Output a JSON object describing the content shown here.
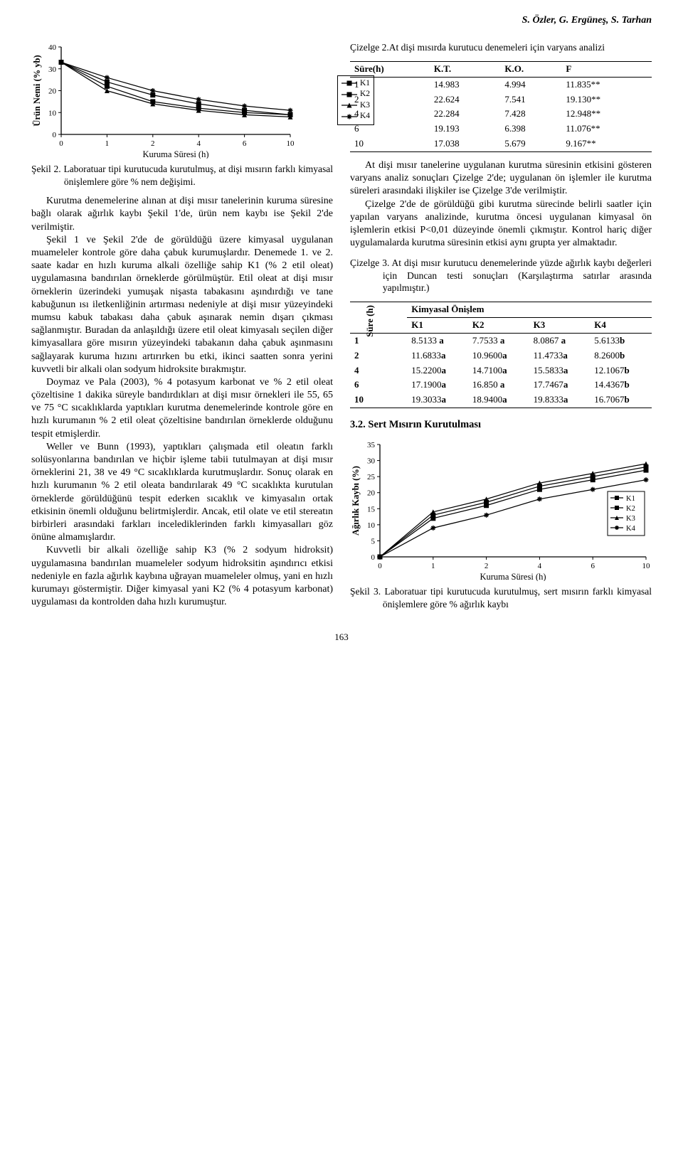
{
  "running_head": "S. Özler, G. Ergüneş, S. Tarhan",
  "page_number": "163",
  "fig2": {
    "type": "line",
    "x_categories": [
      "0",
      "1",
      "2",
      "4",
      "6",
      "10"
    ],
    "series": [
      {
        "name": "K1",
        "marker": "square",
        "color": "#000000",
        "values": [
          33,
          22,
          15,
          12,
          10,
          9
        ]
      },
      {
        "name": "K2",
        "marker": "square",
        "color": "#000000",
        "values": [
          33,
          24,
          18,
          14,
          11,
          9
        ]
      },
      {
        "name": "K3",
        "marker": "triangle",
        "color": "#000000",
        "values": [
          33,
          20,
          14,
          11,
          9,
          8
        ]
      },
      {
        "name": "K4",
        "marker": "star",
        "color": "#000000",
        "values": [
          33,
          26,
          20,
          16,
          13,
          11
        ]
      }
    ],
    "ylim": [
      0,
      40
    ],
    "ytick_step": 10,
    "yticks": [
      "0",
      "10",
      "20",
      "30",
      "40"
    ],
    "ylabel": "Ürün Nemi (% yb)",
    "xlabel": "Kuruma Süresi (h)",
    "label_fontsize": 12.5,
    "background_color": "#ffffff",
    "axis_color": "#000000",
    "line_width": 1.25,
    "marker_size": 7
  },
  "fig2_caption": "Şekil 2. Laboratuar tipi kurutucuda kurutulmuş, at dişi mısırın farklı kimyasal önişlemlere göre % nem değişimi.",
  "left_body_p1": "Kurutma denemelerine alınan at dişi mısır tanelerinin kuruma süresine bağlı olarak ağırlık kaybı Şekil 1'de, ürün nem kaybı ise Şekil 2'de verilmiştir.",
  "left_body_p2": "Şekil 1 ve Şekil 2'de de görüldüğü üzere kimyasal uygulanan muameleler kontrole göre daha çabuk kurumuşlardır. Denemede 1. ve 2. saate kadar en hızlı kuruma alkali özelliğe sahip K1 (% 2 etil oleat) uygulamasına bandırılan örneklerde görülmüştür. Etil oleat at dişi mısır örneklerin üzerindeki yumuşak nişasta tabakasını aşındırdığı ve tane kabuğunun ısı iletkenliğinin artırması nedeniyle at dişi mısır yüzeyindeki mumsu kabuk tabakası daha çabuk aşınarak nemin dışarı çıkması sağlanmıştır. Buradan da anlaşıldığı üzere etil oleat kimyasalı seçilen diğer kimyasallara göre mısırın yüzeyindeki tabakanın daha çabuk aşınmasını sağlayarak kuruma hızını artırırken bu etki, ikinci saatten sonra yerini kuvvetli bir alkali olan sodyum hidroksite bırakmıştır.",
  "left_body_p3": "Doymaz ve Pala (2003), % 4 potasyum karbonat ve % 2 etil oleat çözeltisine 1 dakika süreyle bandırdıkları at dişi mısır örnekleri ile 55, 65 ve 75 °C sıcaklıklarda yaptıkları kurutma denemelerinde kontrole göre en hızlı kurumanın % 2 etil oleat çözeltisine bandırılan örneklerde olduğunu tespit etmişlerdir.",
  "left_body_p4": "Weller ve Bunn (1993), yaptıkları çalışmada etil oleatın farklı solüsyonlarına bandırılan ve hiçbir işleme tabii tutulmayan at dişi mısır örneklerini 21, 38 ve 49 °C sıcaklıklarda kurutmuşlardır. Sonuç olarak en hızlı kurumanın % 2 etil oleata bandırılarak 49 °C sıcaklıkta kurutulan örneklerde görüldüğünü tespit ederken sıcaklık ve kimyasalın ortak etkisinin önemli olduğunu belirtmişlerdir. Ancak, etil olate ve etil stereatın birbirleri arasındaki farkları incelediklerinden farklı kimyasalları göz önüne almamışlardır.",
  "left_body_p5": "Kuvvetli bir alkali özelliğe sahip K3 (% 2 sodyum hidroksit) uygulamasına bandırılan muameleler sodyum hidroksitin aşındırıcı etkisi nedeniyle en fazla ağırlık kaybına uğrayan muameleler olmuş, yani en hızlı kurumayı göstermiştir. Diğer kimyasal yani K2 (% 4 potasyum karbonat) uygulaması da kontrolden daha hızlı kurumuştur.",
  "table2_caption": "Çizelge 2.At dişi mısırda kurutucu denemeleri için varyans analizi",
  "table2": {
    "columns": [
      "Süre(h)",
      "K.T.",
      "K.O.",
      "F"
    ],
    "rows": [
      [
        "1",
        "14.983",
        "4.994",
        "11.835**"
      ],
      [
        "2",
        "22.624",
        "7.541",
        "19.130**"
      ],
      [
        "4",
        "22.284",
        "7.428",
        "12.948**"
      ],
      [
        "6",
        "19.193",
        "6.398",
        "11.076**"
      ],
      [
        "10",
        "17.038",
        "5.679",
        "9.167**"
      ]
    ]
  },
  "right_body_p1": "At dişi mısır tanelerine uygulanan kurutma süresinin etkisini gösteren varyans analiz sonuçları Çizelge 2'de; uygulanan ön işlemler ile kurutma süreleri arasındaki ilişkiler ise Çizelge 3'de verilmiştir.",
  "right_body_p2": "Çizelge 2'de de görüldüğü gibi kurutma sürecinde belirli saatler için yapılan varyans analizinde, kurutma öncesi uygulanan kimyasal ön işlemlerin etkisi P<0,01 düzeyinde önemli çıkmıştır. Kontrol hariç diğer uygulamalarda kurutma süresinin etkisi aynı grupta yer almaktadır.",
  "table3_caption": "Çizelge 3. At dişi mısır kurutucu denemelerinde yüzde ağırlık kaybı değerleri için Duncan testi sonuçları (Karşılaştırma satırlar arasında yapılmıştır.)",
  "table3": {
    "rowhead_label": "Süre (h)",
    "group_header": "Kimyasal Önişlem",
    "columns": [
      "K1",
      "K2",
      "K3",
      "K4"
    ],
    "rows": [
      [
        "1",
        "8.5133 a",
        "7.7533 a",
        "8.0867 a",
        "5.6133b"
      ],
      [
        "2",
        "11.6833a",
        "10.9600a",
        "11.4733a",
        "8.2600b"
      ],
      [
        "4",
        "15.2200a",
        "14.7100a",
        "15.5833a",
        "12.1067b"
      ],
      [
        "6",
        "17.1900a",
        "16.850 a",
        "17.7467a",
        "14.4367b"
      ],
      [
        "10",
        "19.3033a",
        "18.9400a",
        "19.8333a",
        "16.7067b"
      ]
    ]
  },
  "section_3_2": "3.2. Sert Mısırın Kurutulması",
  "fig3": {
    "type": "line",
    "x_categories": [
      "0",
      "1",
      "2",
      "4",
      "6",
      "10"
    ],
    "series": [
      {
        "name": "K1",
        "marker": "square",
        "color": "#000000",
        "values": [
          0,
          13,
          17,
          22,
          25,
          28
        ]
      },
      {
        "name": "K2",
        "marker": "square",
        "color": "#000000",
        "values": [
          0,
          12,
          16,
          21,
          24,
          27
        ]
      },
      {
        "name": "K3",
        "marker": "triangle",
        "color": "#000000",
        "values": [
          0,
          14,
          18,
          23,
          26,
          29
        ]
      },
      {
        "name": "K4",
        "marker": "star",
        "color": "#000000",
        "values": [
          0,
          9,
          13,
          18,
          21,
          24
        ]
      }
    ],
    "ylim": [
      0,
      35
    ],
    "ytick_step": 5,
    "yticks": [
      "0",
      "5",
      "10",
      "15",
      "20",
      "25",
      "30",
      "35"
    ],
    "ylabel": "Ağırlık Kaybı (%)",
    "xlabel": "Kuruma Süresi (h)",
    "label_fontsize": 12.5,
    "background_color": "#ffffff",
    "axis_color": "#000000",
    "line_width": 1.25,
    "marker_size": 7
  },
  "fig3_caption": "Şekil 3. Laboratuar tipi kurutucuda kurutulmuş, sert mısırın farklı kimyasal önişlemlere göre % ağırlık kaybı"
}
